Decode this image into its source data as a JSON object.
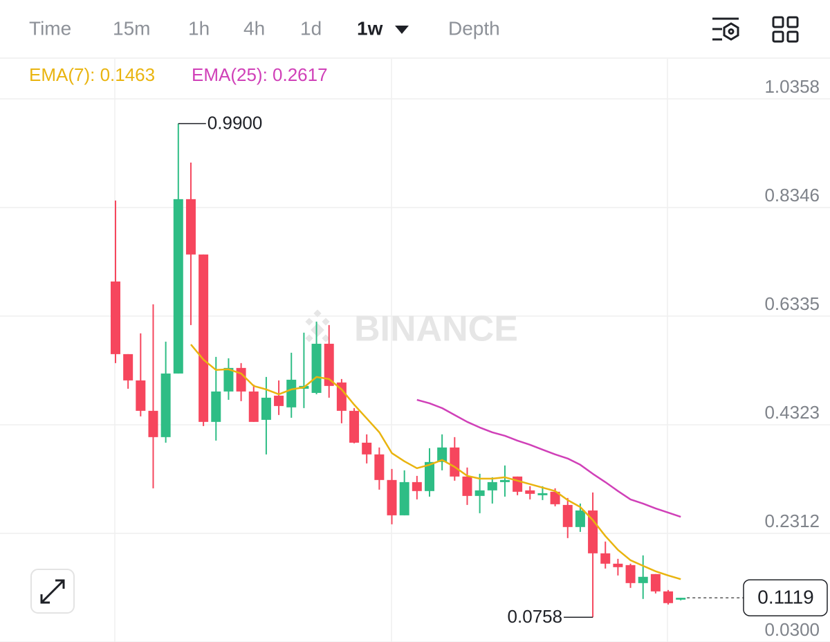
{
  "tabs": {
    "items": [
      "Time",
      "15m",
      "1h",
      "4h",
      "1d",
      "1w",
      "Depth"
    ],
    "active": 5
  },
  "chart_data": {
    "type": "candlestick",
    "categories": [
      null,
      null,
      null,
      null,
      null,
      null,
      null,
      null,
      null,
      null,
      null,
      null,
      null,
      null,
      null,
      null,
      null,
      null,
      null,
      null,
      null,
      null,
      null,
      null,
      null,
      null,
      null,
      null,
      null,
      null,
      null,
      null,
      null,
      null,
      null,
      null,
      null,
      null,
      null,
      null,
      null,
      null,
      null,
      null,
      null,
      null
    ],
    "open": [
      0.6976,
      0.5631,
      0.5144,
      0.4581,
      0.4094,
      0.5272,
      0.8501,
      0.7476,
      0.4376,
      0.4939,
      0.5375,
      0.4939,
      0.4414,
      0.4862,
      0.4645,
      0.499,
      0.4913,
      0.5823,
      0.5106,
      0.4581,
      0.3991,
      0.3774,
      0.33,
      0.2646,
      0.3261,
      0.3095,
      0.3633,
      0.3902,
      0.3364,
      0.3005,
      0.3108,
      0.3261,
      0.3364,
      0.3108,
      0.3018,
      0.3082,
      0.2838,
      0.2429,
      0.2736,
      0.1942,
      0.175,
      0.1724,
      0.1391,
      0.1558,
      0.1237,
      0.1084
    ],
    "high": [
      0.8475,
      0.5631,
      0.6015,
      0.6553,
      0.5862,
      0.99,
      0.9179,
      0.7476,
      0.558,
      0.5554,
      0.5465,
      0.5067,
      0.5208,
      0.5144,
      0.5657,
      0.6028,
      0.6233,
      0.6169,
      0.517,
      0.4632,
      0.4145,
      0.3902,
      0.3505,
      0.3479,
      0.3376,
      0.3889,
      0.4145,
      0.4094,
      0.3531,
      0.3415,
      0.3351,
      0.3569,
      0.3364,
      0.3185,
      0.3185,
      0.3146,
      0.2967,
      0.2864,
      0.3069,
      0.216,
      0.184,
      0.175,
      0.1904,
      0.1558,
      0.1263,
      0.1119
    ],
    "low": [
      0.5465,
      0.499,
      0.4478,
      0.3146,
      0.3991,
      0.5272,
      0.6169,
      0.4299,
      0.403,
      0.4785,
      0.476,
      0.4376,
      0.3774,
      0.4504,
      0.4453,
      0.4632,
      0.4888,
      0.4824,
      0.435,
      0.3979,
      0.3607,
      0.3121,
      0.248,
      0.2646,
      0.2941,
      0.2992,
      0.3479,
      0.3287,
      0.2838,
      0.2685,
      0.2864,
      0.2992,
      0.3018,
      0.2941,
      0.2928,
      0.2813,
      0.2224,
      0.2339,
      0.0758,
      0.166,
      0.1532,
      0.1302,
      0.1097,
      0.1199,
      0.0994,
      0.1071
    ],
    "close": [
      0.5631,
      0.5144,
      0.4581,
      0.4094,
      0.5272,
      0.8501,
      0.7476,
      0.4376,
      0.4939,
      0.5375,
      0.4939,
      0.4376,
      0.4824,
      0.467,
      0.5157,
      0.5042,
      0.5823,
      0.5042,
      0.4581,
      0.3991,
      0.3774,
      0.33,
      0.2646,
      0.3261,
      0.3095,
      0.3633,
      0.3902,
      0.3364,
      0.3005,
      0.3108,
      0.3261,
      0.33,
      0.3082,
      0.3044,
      0.3056,
      0.2851,
      0.2429,
      0.2736,
      0.1942,
      0.175,
      0.1686,
      0.1391,
      0.1507,
      0.1237,
      0.102,
      0.1119
    ],
    "up_color": "#2ebd85",
    "down_color": "#f6465d",
    "indicators": [
      {
        "label": "EMA(7): 0.1463",
        "color": "#e9b40f",
        "values": [
          null,
          null,
          null,
          null,
          null,
          null,
          0.581,
          0.5529,
          0.5337,
          0.535,
          0.5272,
          0.5042,
          0.4977,
          0.4888,
          0.4977,
          0.5016,
          0.5208,
          0.517,
          0.4977,
          0.4696,
          0.444,
          0.4183,
          0.3799,
          0.3646,
          0.3518,
          0.3582,
          0.3671,
          0.3543,
          0.3377,
          0.3325,
          0.3325,
          0.3351,
          0.3287,
          0.3223,
          0.3159,
          0.3095,
          0.2928,
          0.28,
          0.2557,
          0.2263,
          0.2006,
          0.1814,
          0.1711,
          0.1609,
          0.1532,
          0.1463
        ]
      },
      {
        "label": "EMA(25): 0.2617",
        "color": "#d040b8",
        "values": [
          null,
          null,
          null,
          null,
          null,
          null,
          null,
          null,
          null,
          null,
          null,
          null,
          null,
          null,
          null,
          null,
          null,
          null,
          null,
          null,
          null,
          null,
          null,
          null,
          0.4785,
          0.4721,
          0.4632,
          0.4504,
          0.4376,
          0.4273,
          0.4183,
          0.4119,
          0.403,
          0.3953,
          0.3863,
          0.3774,
          0.3697,
          0.3582,
          0.3415,
          0.3261,
          0.3095,
          0.2941,
          0.2864,
          0.2774,
          0.2697,
          0.2617
        ]
      }
    ],
    "ylim": [
      0.03,
      1.11
    ],
    "yticks": [
      {
        "value": 0.03,
        "label": "0.0300"
      },
      0.2312,
      0.4323,
      0.6335,
      0.8346,
      1.0358
    ],
    "grid": true,
    "high_label": "0.9900",
    "low_label": "0.0758",
    "last_label": "0.1119",
    "watermark": "BINANCE"
  }
}
